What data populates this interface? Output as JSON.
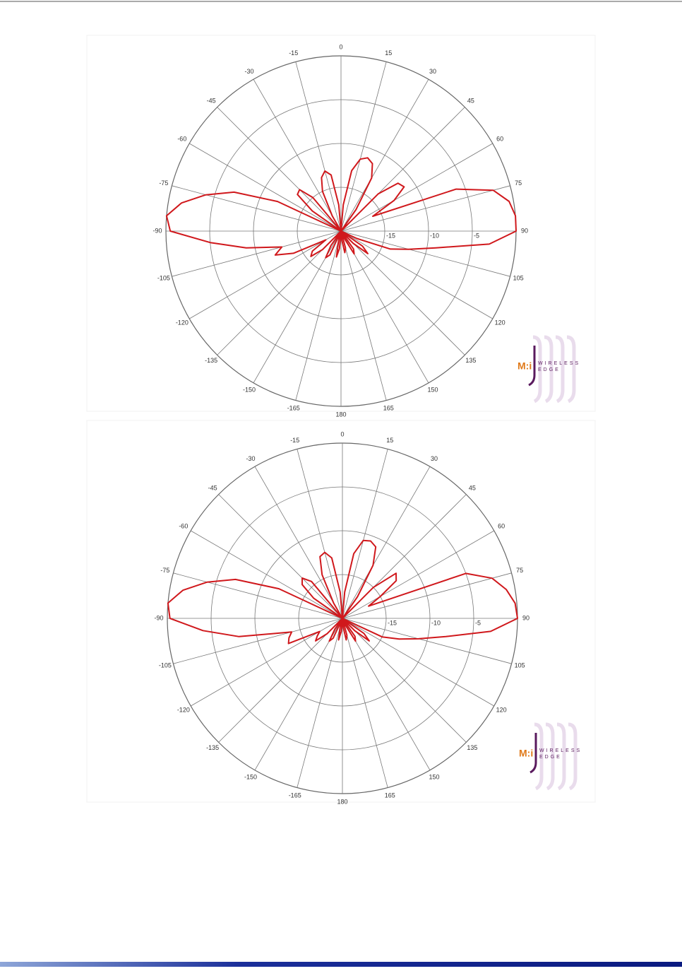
{
  "chart_data": [
    {
      "type": "polar",
      "color": "#d0181c",
      "grid": true,
      "rlim": [
        -20,
        0
      ],
      "rticks": [
        -15,
        -10,
        -5
      ],
      "thetaticks": [
        0,
        15,
        30,
        45,
        60,
        75,
        90,
        105,
        120,
        135,
        150,
        165,
        180,
        -165,
        -150,
        -135,
        -120,
        -105,
        -90,
        -75,
        -60,
        -45,
        -30,
        -15
      ],
      "theta": [
        -180,
        -175,
        -170,
        -165,
        -160,
        -155,
        -150,
        -145,
        -140,
        -135,
        -130,
        -125,
        -120,
        -115,
        -110,
        -105,
        -100,
        -95,
        -90,
        -85,
        -80,
        -75,
        -70,
        -65,
        -60,
        -55,
        -50,
        -45,
        -40,
        -35,
        -30,
        -25,
        -20,
        -15,
        -10,
        -5,
        0,
        5,
        10,
        15,
        20,
        25,
        30,
        35,
        40,
        45,
        50,
        55,
        60,
        65,
        70,
        75,
        80,
        85,
        90,
        95,
        100,
        105,
        110,
        115,
        120,
        125,
        130,
        135,
        140,
        145,
        150,
        155,
        160,
        165,
        170,
        175,
        180
      ],
      "r": [
        -20,
        -18,
        -17,
        -19,
        -20,
        -17,
        -16.5,
        -18,
        -20,
        -17,
        -15.5,
        -16,
        -18,
        -14,
        -12,
        -13,
        -9,
        -5,
        -0.5,
        0,
        -1.5,
        -4,
        -7,
        -12,
        -20,
        -16,
        -13.5,
        -13.3,
        -15,
        -20,
        -18,
        -15,
        -13.5,
        -12.9,
        -13.5,
        -17,
        -20,
        -17,
        -13,
        -11.5,
        -11.1,
        -11.5,
        -13,
        -17,
        -20,
        -14,
        -11.5,
        -11.2,
        -13,
        -16,
        -6,
        -2,
        -0.5,
        0,
        0,
        -3,
        -9,
        -12,
        -14,
        -18,
        -20,
        -17,
        -16,
        -18,
        -20,
        -17.5,
        -17,
        -19,
        -20,
        -18,
        -17.5,
        -19,
        -20
      ],
      "annotations": [
        "M:i",
        "WIRELESS",
        "EDGE"
      ]
    },
    {
      "type": "polar",
      "color": "#d0181c",
      "grid": true,
      "rlim": [
        -20,
        0
      ],
      "rticks": [
        -15,
        -10,
        -5
      ],
      "thetaticks": [
        0,
        15,
        30,
        45,
        60,
        75,
        90,
        105,
        120,
        135,
        150,
        165,
        180,
        -165,
        -150,
        -135,
        -120,
        -105,
        -90,
        -75,
        -60,
        -45,
        -30,
        -15
      ],
      "theta": [
        -180,
        -175,
        -170,
        -165,
        -160,
        -155,
        -150,
        -145,
        -140,
        -135,
        -130,
        -125,
        -120,
        -115,
        -110,
        -105,
        -100,
        -95,
        -90,
        -85,
        -80,
        -75,
        -70,
        -65,
        -60,
        -55,
        -50,
        -45,
        -40,
        -35,
        -30,
        -25,
        -20,
        -15,
        -10,
        -5,
        0,
        5,
        10,
        15,
        20,
        25,
        30,
        35,
        40,
        45,
        50,
        55,
        60,
        65,
        70,
        75,
        80,
        85,
        90,
        95,
        100,
        105,
        110,
        115,
        120,
        125,
        130,
        135,
        140,
        145,
        150,
        155,
        160,
        165,
        170,
        175,
        180
      ],
      "r": [
        -20,
        -18.5,
        -17.5,
        -19,
        -20,
        -17.5,
        -17,
        -18.5,
        -20,
        -17.5,
        -16,
        -16.5,
        -17,
        -13.2,
        -13.5,
        -14,
        -8,
        -4,
        -0.3,
        0,
        -1.5,
        -4,
        -7,
        -12,
        -20,
        -16,
        -14,
        -13.5,
        -14.5,
        -20,
        -18,
        -14.5,
        -12.5,
        -12.2,
        -13,
        -17,
        -20,
        -17,
        -12.5,
        -10.8,
        -10.6,
        -11,
        -13,
        -17,
        -20,
        -15,
        -12,
        -12.5,
        -15,
        -16.7,
        -5,
        -2.3,
        -1,
        -0.2,
        0,
        -3,
        -8,
        -11,
        -13.1,
        -15,
        -20,
        -17,
        -16,
        -18,
        -20,
        -17.5,
        -17,
        -19,
        -20,
        -18,
        -17.5,
        -19,
        -20
      ],
      "annotations": [
        "M:i",
        "WIRELESS",
        "EDGE"
      ]
    }
  ]
}
